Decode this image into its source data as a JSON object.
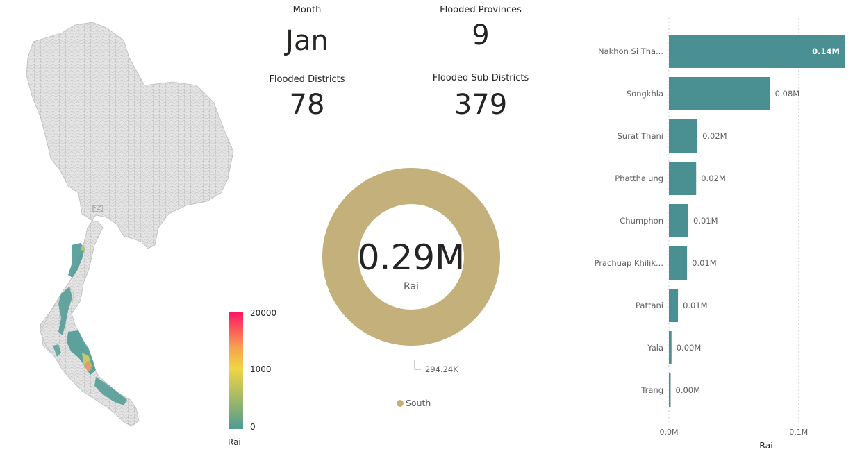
{
  "kpis": {
    "month": {
      "label": "Month",
      "value": "Jan"
    },
    "provinces": {
      "label": "Flooded Provinces",
      "value": "9"
    },
    "districts": {
      "label": "Flooded Districts",
      "value": "78"
    },
    "subdistricts": {
      "label": "Flooded Sub-Districts",
      "value": "379"
    }
  },
  "map": {
    "legend": {
      "title": "Rai",
      "max_label": "20000",
      "mid_label": "1000",
      "min_label": "0"
    },
    "colors": {
      "low": "#4e9a93",
      "mid": "#f2d544",
      "high": "#ff1464",
      "base": "#e4e4e4"
    }
  },
  "colors": {
    "bar": "#4a8f91",
    "donut": "#c4b07b",
    "bar_label_inside": "#ffffff"
  },
  "chart_data": [
    {
      "type": "pie",
      "variant": "donut",
      "center_value": "0.29M",
      "center_label": "Rai",
      "categories": [
        "South"
      ],
      "values": [
        294240
      ],
      "data_labels": [
        "294.24K"
      ],
      "legend": [
        "South"
      ],
      "legend_position": "bottom"
    },
    {
      "type": "bar",
      "orientation": "horizontal",
      "categories": [
        "Nakhon Si Tha...",
        "Songkhla",
        "Surat Thani",
        "Phatthalung",
        "Chumphon",
        "Prachuap Khilik...",
        "Pattani",
        "Yala",
        "Trang"
      ],
      "values": [
        0.136,
        0.078,
        0.022,
        0.021,
        0.015,
        0.014,
        0.007,
        0.002,
        0.001
      ],
      "data_labels": [
        "0.14M",
        "0.08M",
        "0.02M",
        "0.02M",
        "0.01M",
        "0.01M",
        "0.01M",
        "0.00M",
        "0.00M"
      ],
      "xlabel": "Rai",
      "x_ticks": [
        "0.0M",
        "0.1M"
      ],
      "xlim": [
        0,
        0.136
      ],
      "grid": true
    }
  ]
}
